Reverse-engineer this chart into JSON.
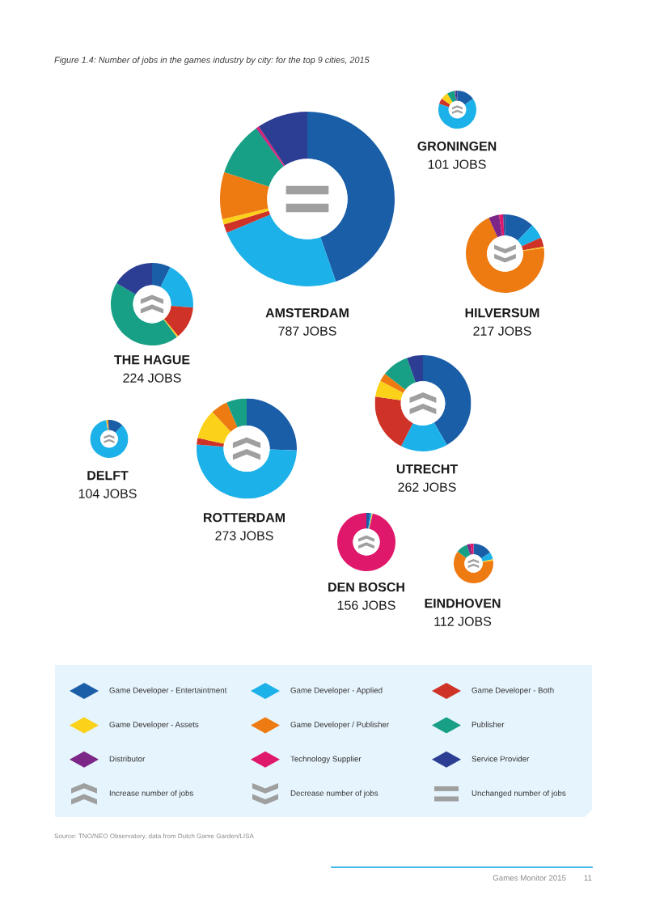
{
  "chart_data": [
    {
      "type": "other",
      "title": "Figure 1.4: Number of jobs in the games industry by city: for the top 9 cities, 2015"
    },
    {
      "type": "donut",
      "title": "GRONINGEN",
      "subtitle": "101 JOBS",
      "legend": "bottom",
      "categories": [
        "Game Developer - Entertaintment",
        "Game Developer - Applied",
        "Game Developer - Both",
        "Game Developer - Assets",
        "Game Developer / Publisher",
        "Publisher",
        "Distributor",
        "Technology Supplier",
        "Service Provider"
      ],
      "values": [
        15.5,
        64.5,
        4.7,
        6.4,
        0,
        6.7,
        0.8,
        0,
        1.4
      ],
      "colors": [
        "#1a5ea8",
        "#1db1e9",
        "#cf3328",
        "#fbd11a",
        "#ee7a12",
        "#17a086",
        "#7c2787",
        "#e0186b",
        "#2c3e93"
      ]
    },
    {
      "type": "donut",
      "title": "AMSTERDAM",
      "subtitle": "787 JOBS",
      "values": [
        44.7,
        24.0,
        1.6,
        1.0,
        8.7,
        10.0,
        0.2,
        0.4,
        9.4
      ],
      "colors": [
        "#1a5ea8",
        "#1db1e9",
        "#cf3328",
        "#fbd11a",
        "#ee7a12",
        "#17a086",
        "#7c2787",
        "#e0186b",
        "#2c3e93"
      ]
    },
    {
      "type": "donut",
      "title": "HILVERSUM",
      "subtitle": "217 JOBS",
      "values": [
        12.2,
        6.1,
        3.9,
        0.5,
        70.5,
        0,
        4.3,
        1.7,
        0.8
      ],
      "colors": [
        "#1a5ea8",
        "#1db1e9",
        "#cf3328",
        "#fbd11a",
        "#ee7a12",
        "#17a086",
        "#7c2787",
        "#e0186b",
        "#2c3e93"
      ]
    },
    {
      "type": "donut",
      "title": "THE HAGUE",
      "subtitle": "224 JOBS",
      "values": [
        7.3,
        19.0,
        12.8,
        0.6,
        0,
        43.8,
        0,
        0,
        16.5
      ],
      "colors": [
        "#1a5ea8",
        "#1db1e9",
        "#cf3328",
        "#fbd11a",
        "#ee7a12",
        "#17a086",
        "#7c2787",
        "#e0186b",
        "#2c3e93"
      ]
    },
    {
      "type": "donut",
      "title": "UTRECHT",
      "subtitle": "262 JOBS",
      "values": [
        41.7,
        15.8,
        19.7,
        5.5,
        2.8,
        9.1,
        0,
        0,
        5.4
      ],
      "colors": [
        "#1a5ea8",
        "#1db1e9",
        "#cf3328",
        "#fbd11a",
        "#ee7a12",
        "#17a086",
        "#7c2787",
        "#e0186b",
        "#2c3e93"
      ]
    },
    {
      "type": "donut",
      "title": "DELFT",
      "subtitle": "104 JOBS",
      "values": [
        12.3,
        85.2,
        0,
        1.0,
        0.8,
        0,
        0,
        0,
        0.7
      ],
      "colors": [
        "#1a5ea8",
        "#1db1e9",
        "#cf3328",
        "#fbd11a",
        "#ee7a12",
        "#17a086",
        "#7c2787",
        "#e0186b",
        "#2c3e93"
      ]
    },
    {
      "type": "donut",
      "title": "ROTTERDAM",
      "subtitle": "273 JOBS",
      "values": [
        25.6,
        50.7,
        2.1,
        9.6,
        5.5,
        6.5,
        0,
        0,
        0
      ],
      "colors": [
        "#1a5ea8",
        "#1db1e9",
        "#cf3328",
        "#fbd11a",
        "#ee7a12",
        "#17a086",
        "#7c2787",
        "#e0186b",
        "#2c3e93"
      ]
    },
    {
      "type": "donut",
      "title": "DEN BOSCH",
      "subtitle": "156 JOBS",
      "values": [
        2.2,
        0.8,
        0,
        0.5,
        0,
        0,
        0,
        96.5,
        0
      ],
      "colors": [
        "#1a5ea8",
        "#1db1e9",
        "#cf3328",
        "#fbd11a",
        "#ee7a12",
        "#17a086",
        "#7c2787",
        "#e0186b",
        "#2c3e93"
      ]
    },
    {
      "type": "donut",
      "title": "EINDHOVEN",
      "subtitle": "112 JOBS",
      "values": [
        15.8,
        5.8,
        0,
        1.1,
        62.5,
        9.3,
        2.8,
        2.7,
        0
      ],
      "colors": [
        "#1a5ea8",
        "#1db1e9",
        "#cf3328",
        "#fbd11a",
        "#ee7a12",
        "#17a086",
        "#7c2787",
        "#e0186b",
        "#2c3e93"
      ]
    },
    {
      "type": "other",
      "annotations": [
        "Increase number of jobs",
        "Decrease number of jobs",
        "Unchanged number of jobs",
        "Source: TNO/NEO Observatory, data from Dutch Game Garden/LISA",
        "Games Monitor 2015",
        "11"
      ]
    }
  ]
}
